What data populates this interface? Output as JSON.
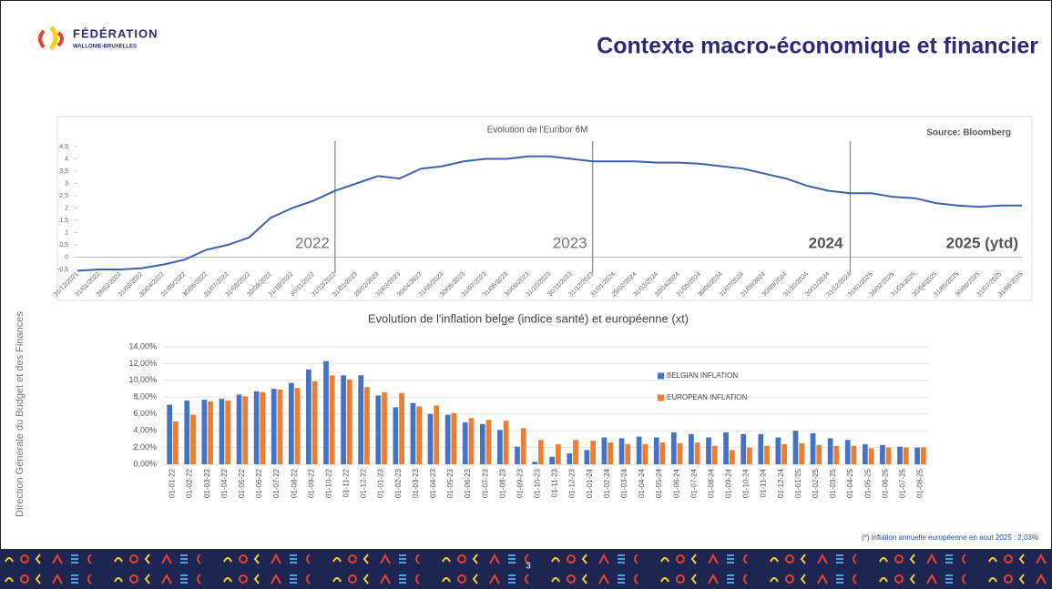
{
  "header": {
    "title": "Contexte macro-économique et financier",
    "logo": [
      "FÉDÉRATION",
      "WALLONIE-BRUXELLES"
    ]
  },
  "sidebar": "Direction Générale du Budget et des Finances",
  "footnote": "(*) inflation annuelle européenne en aout 2025 : 2,03%",
  "page_number": "3",
  "chart_data": [
    {
      "type": "line",
      "title": "Evolution de l'Euribor 6M",
      "source": "Source: Bloomberg",
      "annotations": [
        "2022",
        "2023",
        "2024",
        "2025 (ytd)"
      ],
      "x": [
        "31/12/2021",
        "31/01/2022",
        "28/02/2022",
        "31/03/2022",
        "30/04/2022",
        "31/05/2022",
        "30/06/2022",
        "31/07/2022",
        "31/08/2022",
        "30/09/2022",
        "31/10/2022",
        "30/11/2022",
        "31/12/2022",
        "31/01/2023",
        "28/02/2023",
        "31/03/2023",
        "30/04/2023",
        "31/05/2023",
        "30/06/2023",
        "31/07/2023",
        "31/08/2023",
        "30/09/2023",
        "31/10/2023",
        "30/11/2023",
        "31/12/2023",
        "31/01/2024",
        "29/02/2024",
        "31/03/2024",
        "30/04/2024",
        "31/05/2024",
        "30/06/2024",
        "31/07/2024",
        "31/08/2024",
        "30/09/2024",
        "31/10/2024",
        "30/11/2024",
        "31/12/2024",
        "31/01/2025",
        "28/02/2025",
        "31/03/2025",
        "30/04/2025",
        "31/05/2025",
        "30/06/2025",
        "31/07/2025",
        "31/08/2025"
      ],
      "values": [
        -0.55,
        -0.5,
        -0.5,
        -0.45,
        -0.3,
        -0.1,
        0.3,
        0.5,
        0.8,
        1.6,
        2.0,
        2.3,
        2.7,
        3.0,
        3.3,
        3.2,
        3.6,
        3.7,
        3.9,
        4.0,
        4.0,
        4.1,
        4.1,
        4.0,
        3.9,
        3.9,
        3.9,
        3.85,
        3.85,
        3.8,
        3.7,
        3.6,
        3.4,
        3.2,
        2.9,
        2.7,
        2.6,
        2.6,
        2.45,
        2.4,
        2.2,
        2.1,
        2.05,
        2.1,
        2.1
      ],
      "color": "#3b62ad",
      "ylim": [
        -0.5,
        4.5
      ],
      "yticks": [
        {
          "value": -0.5,
          "label": "-0,5"
        },
        0,
        {
          "value": 0.5,
          "label": "0,5"
        },
        1,
        {
          "value": 1.5,
          "label": "1,5"
        },
        2,
        {
          "value": 2.5,
          "label": "2,5"
        },
        3,
        {
          "value": 3.5,
          "label": "3,5"
        },
        4,
        {
          "value": 4.5,
          "label": "4,5"
        }
      ],
      "grid": false
    },
    {
      "type": "bar",
      "title": "Evolution de l'inflation belge (indice santé) et européenne (xt)",
      "categories": [
        "01-01-22",
        "01-02-22",
        "01-03-22",
        "01-04-22",
        "01-05-22",
        "01-06-22",
        "01-07-22",
        "01-08-22",
        "01-09-22",
        "01-10-22",
        "01-11-22",
        "01-12-22",
        "01-01-23",
        "01-02-23",
        "01-03-23",
        "01-04-23",
        "01-05-23",
        "01-06-23",
        "01-07-23",
        "01-08-23",
        "01-09-23",
        "01-10-23",
        "01-11-23",
        "01-12-23",
        "01-01-24",
        "01-02-24",
        "01-03-24",
        "01-04-24",
        "01-05-24",
        "01-06-24",
        "01-07-24",
        "01-08-24",
        "01-09-24",
        "01-10-24",
        "01-11-24",
        "01-12-24",
        "01-01-25",
        "01-02-25",
        "01-03-25",
        "01-04-25",
        "01-05-25",
        "01-06-25",
        "01-07-25",
        "01-08-25"
      ],
      "series": [
        {
          "name": "BELGIAN INFLATION",
          "color": "#4472c4",
          "values": [
            7.1,
            7.6,
            7.7,
            7.8,
            8.3,
            8.7,
            9.0,
            9.7,
            11.3,
            12.3,
            10.6,
            10.6,
            8.2,
            6.8,
            7.3,
            6.0,
            5.9,
            5.0,
            4.8,
            4.1,
            2.1,
            0.3,
            0.9,
            1.3,
            1.7,
            3.2,
            3.1,
            3.3,
            3.2,
            3.8,
            3.6,
            3.2,
            3.8,
            3.6,
            3.6,
            3.2,
            4.0,
            3.7,
            3.1,
            2.9,
            2.4,
            2.3,
            2.1,
            2.0
          ]
        },
        {
          "name": "EUROPEAN INFLATION",
          "color": "#ed7d31",
          "values": [
            5.1,
            5.9,
            7.5,
            7.6,
            8.1,
            8.6,
            8.9,
            9.1,
            9.9,
            10.6,
            10.1,
            9.2,
            8.6,
            8.5,
            6.9,
            7.0,
            6.1,
            5.5,
            5.3,
            5.2,
            4.3,
            2.9,
            2.4,
            2.9,
            2.8,
            2.6,
            2.4,
            2.4,
            2.6,
            2.5,
            2.6,
            2.2,
            1.7,
            2.0,
            2.2,
            2.4,
            2.5,
            2.3,
            2.2,
            2.2,
            1.9,
            2.0,
            2.0,
            2.03
          ]
        }
      ],
      "ylim": [
        0,
        14
      ],
      "yticks": [
        {
          "value": 0,
          "label": "0,00%"
        },
        {
          "value": 2,
          "label": "2,00%"
        },
        {
          "value": 4,
          "label": "4,00%"
        },
        {
          "value": 6,
          "label": "6,00%"
        },
        {
          "value": 8,
          "label": "8,00%"
        },
        {
          "value": 10,
          "label": "10,00%"
        },
        {
          "value": 12,
          "label": "12,00%"
        },
        {
          "value": 14,
          "label": "14,00%"
        }
      ],
      "grid": true
    }
  ]
}
